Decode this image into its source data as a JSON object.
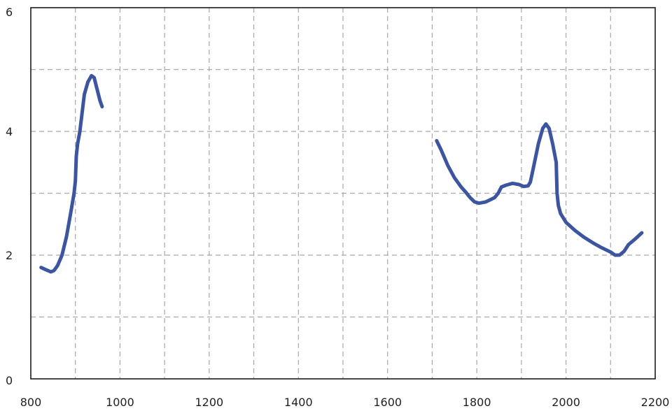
{
  "chart_data": {
    "type": "line",
    "title": "",
    "xlabel": "",
    "ylabel": "",
    "xlim": [
      800,
      2200
    ],
    "ylim": [
      0,
      6
    ],
    "x_ticks": [
      800,
      1000,
      1200,
      1400,
      1600,
      1800,
      2000,
      2200
    ],
    "y_ticks": [
      0,
      2,
      4,
      6
    ],
    "x_tick_labels": [
      "800",
      "1000",
      "1200",
      "1400",
      "1600",
      "1800",
      "2000",
      "2200"
    ],
    "y_tick_labels": [
      "0",
      "2",
      "4",
      "6"
    ],
    "grid": true,
    "grid_style": "dashed",
    "grid_x_step": 100,
    "grid_y_step": 1,
    "legend": "none",
    "line_color": "#3a55a5",
    "series": [
      {
        "points": [
          [
            823,
            1.8
          ],
          [
            835,
            1.76
          ],
          [
            845,
            1.73
          ],
          [
            852,
            1.75
          ],
          [
            860,
            1.83
          ],
          [
            870,
            2.0
          ],
          [
            880,
            2.3
          ],
          [
            890,
            2.7
          ],
          [
            897,
            3.0
          ],
          [
            900,
            3.2
          ],
          [
            902,
            3.6
          ],
          [
            905,
            3.8
          ],
          [
            910,
            4.0
          ],
          [
            915,
            4.3
          ],
          [
            920,
            4.6
          ],
          [
            928,
            4.8
          ],
          [
            936,
            4.9
          ],
          [
            942,
            4.87
          ],
          [
            948,
            4.7
          ],
          [
            955,
            4.5
          ],
          [
            960,
            4.4
          ]
        ]
      },
      {
        "points": [
          [
            1710,
            3.85
          ],
          [
            1720,
            3.7
          ],
          [
            1735,
            3.45
          ],
          [
            1750,
            3.25
          ],
          [
            1765,
            3.1
          ],
          [
            1775,
            3.02
          ],
          [
            1785,
            2.93
          ],
          [
            1795,
            2.86
          ],
          [
            1805,
            2.84
          ],
          [
            1820,
            2.86
          ],
          [
            1840,
            2.93
          ],
          [
            1848,
            3.0
          ],
          [
            1855,
            3.1
          ],
          [
            1865,
            3.13
          ],
          [
            1880,
            3.16
          ],
          [
            1895,
            3.14
          ],
          [
            1905,
            3.11
          ],
          [
            1915,
            3.12
          ],
          [
            1920,
            3.18
          ],
          [
            1928,
            3.45
          ],
          [
            1938,
            3.8
          ],
          [
            1948,
            4.05
          ],
          [
            1955,
            4.12
          ],
          [
            1962,
            4.05
          ],
          [
            1970,
            3.8
          ],
          [
            1978,
            3.5
          ],
          [
            1980,
            3.0
          ],
          [
            1983,
            2.8
          ],
          [
            1988,
            2.67
          ],
          [
            2000,
            2.53
          ],
          [
            2020,
            2.4
          ],
          [
            2040,
            2.29
          ],
          [
            2060,
            2.2
          ],
          [
            2080,
            2.12
          ],
          [
            2100,
            2.05
          ],
          [
            2110,
            2.0
          ],
          [
            2120,
            2.0
          ],
          [
            2130,
            2.06
          ],
          [
            2140,
            2.17
          ],
          [
            2155,
            2.26
          ],
          [
            2170,
            2.36
          ]
        ]
      }
    ]
  }
}
